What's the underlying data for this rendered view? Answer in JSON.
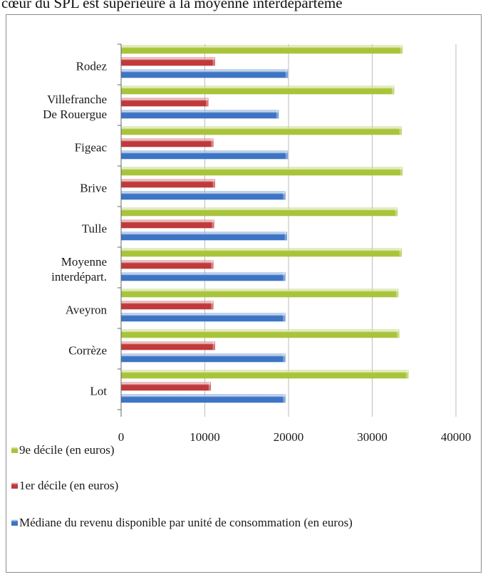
{
  "header_text": "cœur du SPL est supérieure à la moyenne interdéparteme",
  "colors": {
    "decile9": "#a8c43a",
    "decile1": "#c0393b",
    "mediane": "#3d74c4"
  },
  "chart_data": {
    "type": "bar",
    "orientation": "horizontal",
    "title": "",
    "xlabel": "",
    "ylabel": "",
    "xlim": [
      0,
      40000
    ],
    "x_ticks": [
      0,
      10000,
      20000,
      30000,
      40000
    ],
    "grid": true,
    "legend_position": "bottom",
    "categories": [
      [
        "Rodez"
      ],
      [
        "Villefranche",
        "De Rouergue"
      ],
      [
        "Figeac"
      ],
      [
        "Brive"
      ],
      [
        "Tulle"
      ],
      [
        "Moyenne",
        "interdépart."
      ],
      [
        "Aveyron"
      ],
      [
        "Corrèze"
      ],
      [
        "Lot"
      ]
    ],
    "series": [
      {
        "name": "9e décile (en euros)",
        "color_key": "decile9",
        "values": [
          33600,
          32600,
          33500,
          33600,
          33000,
          33500,
          33100,
          33200,
          34300
        ]
      },
      {
        "name": "1er décile (en euros)",
        "color_key": "decile1",
        "values": [
          11200,
          10400,
          11000,
          11200,
          11100,
          11000,
          11000,
          11200,
          10700
        ]
      },
      {
        "name": "Médiane du revenu disponible par unité de consommation (en euros)",
        "color_key": "mediane",
        "values": [
          19900,
          18800,
          19900,
          19600,
          19800,
          19600,
          19600,
          19600,
          19600
        ]
      }
    ]
  }
}
